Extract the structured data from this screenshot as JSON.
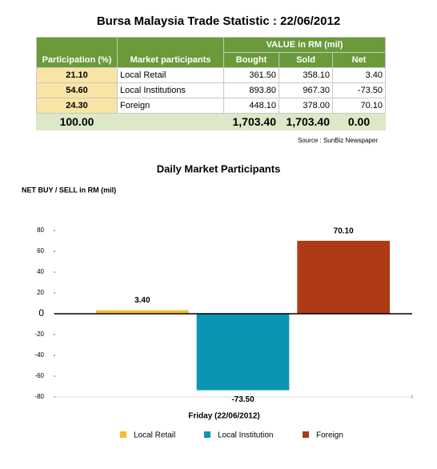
{
  "title": "Bursa Malaysia Trade Statistic : 22/06/2012",
  "table": {
    "header": {
      "participation": "Participation (%)",
      "participants": "Market participants",
      "value_group": "VALUE in RM (mil)",
      "bought": "Bought",
      "sold": "Sold",
      "net": "Net"
    },
    "rows": [
      [
        "21.10",
        "Local Retail",
        "361.50",
        "358.10",
        "3.40"
      ],
      [
        "54.60",
        "Local Institutions",
        "893.80",
        "967.30",
        "-73.50"
      ],
      [
        "24.30",
        "Foreign",
        "448.10",
        "378.00",
        "70.10"
      ]
    ],
    "total": {
      "participation": "100.00",
      "bought": "1,703.40",
      "sold": "1,703.40",
      "net": "0.00"
    }
  },
  "source": "Source : SunBiz Newspaper",
  "chart_data": {
    "type": "bar",
    "title": "Daily Market Participants",
    "y_label": "NET BUY / SELL in RM (mil)",
    "x_label": "Friday (22/06/2012)",
    "categories": [
      null
    ],
    "series": [
      {
        "name": "Local Retail",
        "color": "#f2c12e",
        "values": [
          3.4
        ],
        "value_labels": [
          "3.40"
        ]
      },
      {
        "name": "Local Institution",
        "color": "#0b95b5",
        "values": [
          -73.5
        ],
        "value_labels": [
          "-73.50"
        ]
      },
      {
        "name": "Foreign",
        "color": "#ad3a14",
        "values": [
          70.1
        ],
        "value_labels": [
          "70.10"
        ]
      }
    ],
    "ylim": [
      -80,
      80
    ],
    "yticks": [
      -80,
      -60,
      -40,
      -20,
      0,
      20,
      40,
      60,
      80
    ],
    "grid": false,
    "legend": "bottom"
  }
}
